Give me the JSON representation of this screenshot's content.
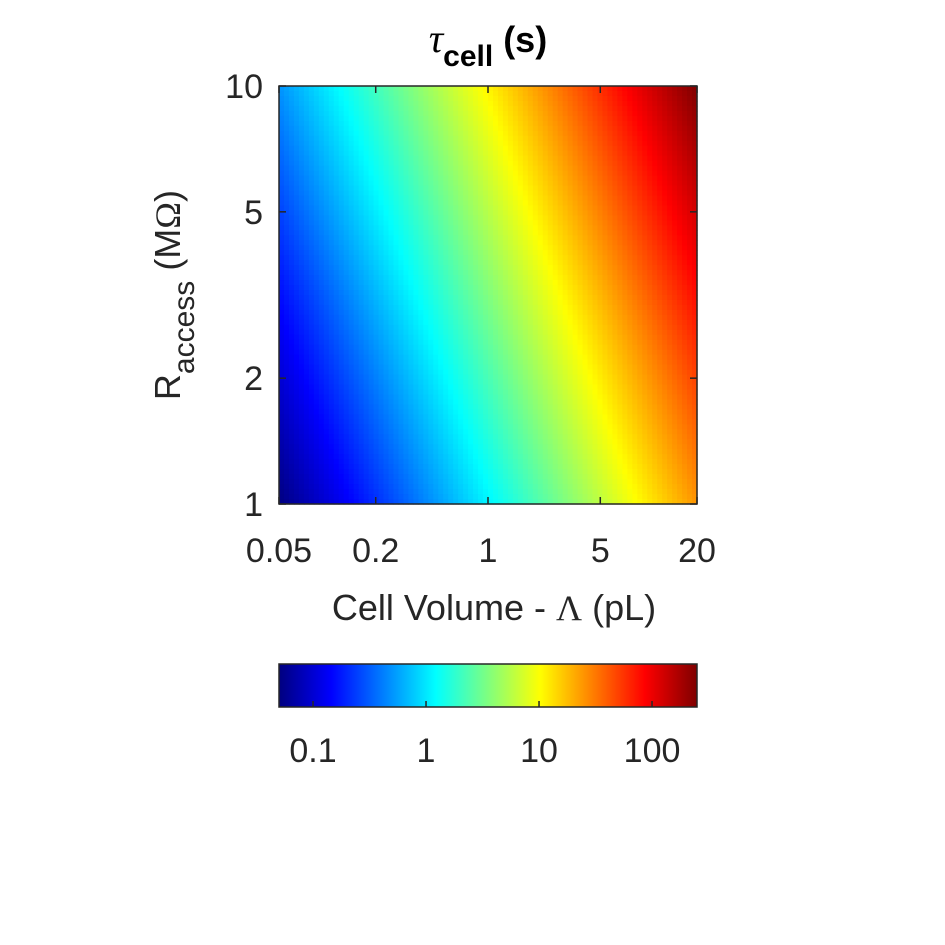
{
  "chart_data": {
    "type": "heatmap",
    "title": {
      "symbol": "τ",
      "subscript": "cell",
      "unit": "(s)"
    },
    "xlabel": {
      "prefix": "Cell Volume - ",
      "symbol": "Λ",
      "suffix": " (pL)"
    },
    "ylabel": {
      "main": "R",
      "subscript": "access",
      "unit_open": " (M",
      "unit_symbol": "Ω",
      "unit_close": ")"
    },
    "x_scale": "log",
    "y_scale": "log",
    "xlim": [
      0.05,
      20
    ],
    "ylim": [
      1,
      10
    ],
    "x_ticks": [
      {
        "value": 0.05,
        "label": "0.05"
      },
      {
        "value": 0.2,
        "label": "0.2"
      },
      {
        "value": 1,
        "label": "1"
      },
      {
        "value": 5,
        "label": "5"
      },
      {
        "value": 20,
        "label": "20"
      }
    ],
    "y_ticks": [
      {
        "value": 1,
        "label": "1"
      },
      {
        "value": 2,
        "label": "2"
      },
      {
        "value": 5,
        "label": "5"
      },
      {
        "value": 10,
        "label": "10"
      }
    ],
    "colormap": "jet",
    "color_scale": "log",
    "clim": [
      0.05,
      250
    ],
    "colorbar": {
      "location": "bottom",
      "ticks": [
        {
          "value": 0.1,
          "label": "0.1"
        },
        {
          "value": 1,
          "label": "1"
        },
        {
          "value": 10,
          "label": "10"
        },
        {
          "value": 100,
          "label": "100"
        }
      ]
    },
    "corner_values": {
      "x_min_y_min": 0.05,
      "x_max_y_min": 25,
      "x_min_y_max": 0.5,
      "x_max_y_max": 250
    },
    "jet_colors": [
      "#00007f",
      "#0000ff",
      "#007fff",
      "#00ffff",
      "#7fff7f",
      "#ffff00",
      "#ff7f00",
      "#ff0000",
      "#7f0000"
    ]
  }
}
